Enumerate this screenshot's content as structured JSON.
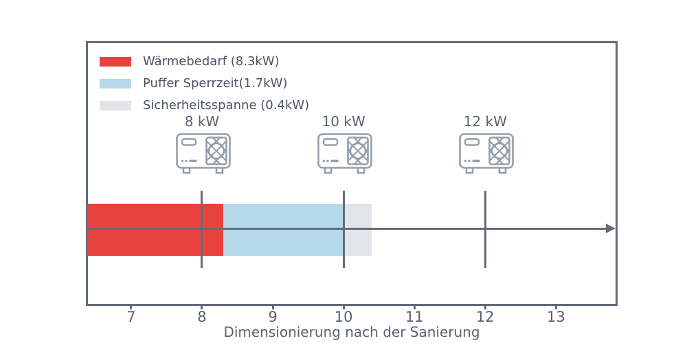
{
  "colors": {
    "frame": "#626c79",
    "axis_text": "#59626f",
    "legend_text": "#4b5462",
    "icon": "#969ea9",
    "background": "#ffffff",
    "red": "#e8423e",
    "blue": "#b6d9ea",
    "gray": "#e3e4e9"
  },
  "legend": {
    "items": [
      {
        "label": "Wärmebedarf (8.3kW)",
        "color": "#e8423e"
      },
      {
        "label": "Puffer Sperrzeit(1.7kW)",
        "color": "#b6d9ea"
      },
      {
        "label": "Sicherheitsspanne (0.4kW)",
        "color": "#e3e4e9"
      }
    ]
  },
  "chart_data": {
    "type": "bar",
    "orientation": "horizontal",
    "title": "",
    "xlabel": "Dimensionierung nach der Sanierung",
    "ylabel": "",
    "xlim": [
      6.38,
      13.85
    ],
    "xticks": [
      7,
      8,
      9,
      10,
      11,
      12,
      13
    ],
    "grid": false,
    "legend_position": "upper-left",
    "segments": [
      {
        "name": "Wärmebedarf",
        "value_kw": 8.3,
        "from": 6.38,
        "to": 8.3,
        "color": "#e8423e"
      },
      {
        "name": "Puffer Sperrzeit",
        "value_kw": 1.7,
        "from": 8.3,
        "to": 10.0,
        "color": "#b6d9ea"
      },
      {
        "name": "Sicherheitsspanne",
        "value_kw": 0.4,
        "from": 10.0,
        "to": 10.4,
        "color": "#e3e4e9"
      }
    ],
    "markers": [
      {
        "label": "8 kW",
        "x": 8,
        "icon": "heat-pump-icon"
      },
      {
        "label": "10 kW",
        "x": 10,
        "icon": "heat-pump-icon"
      },
      {
        "label": "12 kW",
        "x": 12,
        "icon": "heat-pump-icon"
      }
    ],
    "arrow_axis": {
      "y_center_of_bar": true,
      "direction": "right"
    }
  }
}
